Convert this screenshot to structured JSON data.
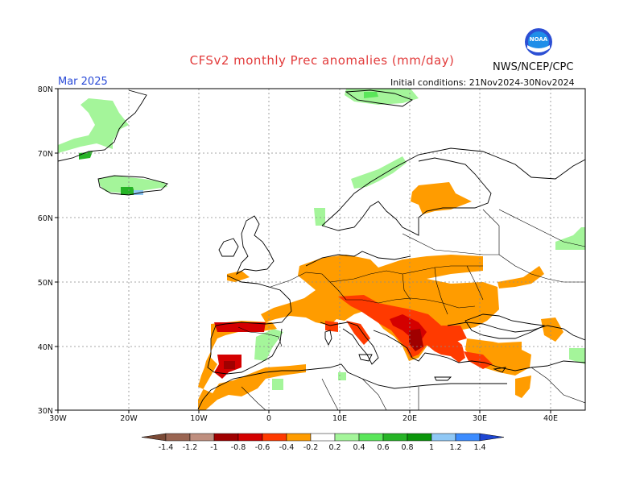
{
  "header": {
    "title": "CFSv2 monthly Prec anomalies (mm/day)",
    "agency": "NWS/NCEP/CPC",
    "month": "Mar 2025",
    "initial_conditions": "Initial conditions: 21Nov2024-30Nov2024"
  },
  "axes": {
    "lon_ticks": [
      "30W",
      "20W",
      "10W",
      "0",
      "10E",
      "20E",
      "30E",
      "40E"
    ],
    "lat_ticks": [
      "30N",
      "40N",
      "50N",
      "60N",
      "70N",
      "80N"
    ]
  },
  "colorbar": {
    "labels": [
      "-1.4",
      "-1.2",
      "-1",
      "-0.8",
      "-0.6",
      "-0.4",
      "-0.2",
      "0.2",
      "0.4",
      "0.6",
      "0.8",
      "1",
      "1.2",
      "1.4"
    ],
    "colors": [
      "#7a4a36",
      "#9a6552",
      "#bf8f7f",
      "#a00000",
      "#d40000",
      "#ff3a00",
      "#ff9c00",
      "#ffffff",
      "#a4f59a",
      "#5ae65a",
      "#26b426",
      "#0a960a",
      "#90c8f5",
      "#3c8cff",
      "#1e46d2"
    ]
  },
  "icons": {
    "logo": "noaa-logo-icon"
  },
  "colors": {
    "title": "#e23b3b",
    "month": "#2a4bd7"
  }
}
